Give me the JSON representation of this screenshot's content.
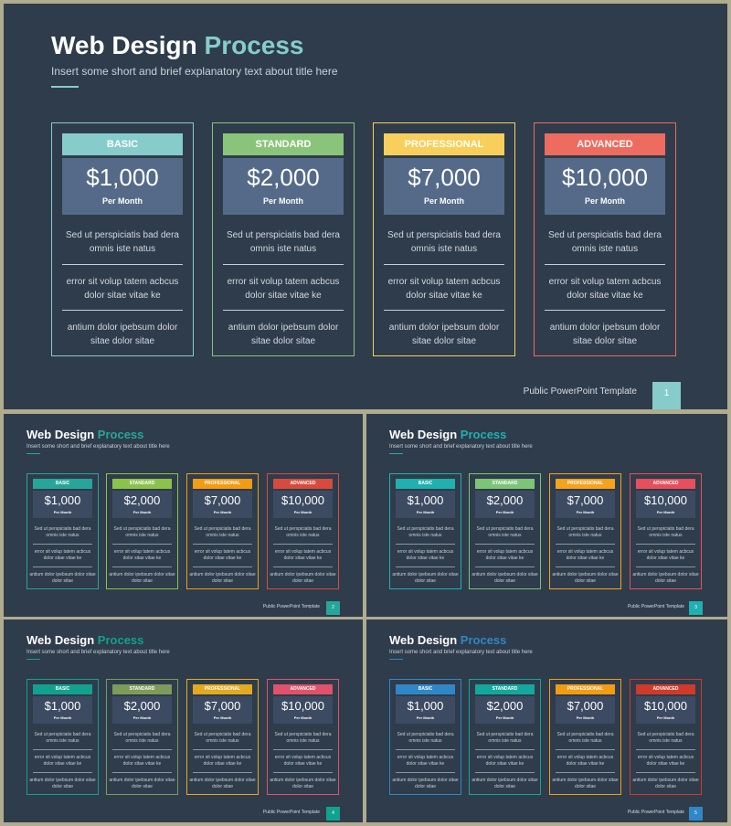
{
  "title_main": "Web Design",
  "title_accent": "Process",
  "subtitle": "Insert some short and brief explanatory text about title here",
  "per_month": "Per Month",
  "footer": "Public PowerPoint  Template",
  "plans": [
    {
      "name": "BASIC",
      "price": "$1,000"
    },
    {
      "name": "STANDARD",
      "price": "$2,000"
    },
    {
      "name": "PROFESSIONAL",
      "price": "$7,000"
    },
    {
      "name": "ADVANCED",
      "price": "$10,000"
    }
  ],
  "features": [
    "Sed ut perspiciatis bad dera omnis iste natus",
    "error sit volup tatem acbcus dolor sitae vitae ke",
    "antium dolor ipebsum dolor sitae dolor sitae"
  ],
  "slides": [
    {
      "page": "1",
      "accent": "#86cccb",
      "colors": [
        "#86cccb",
        "#8ac47a",
        "#f7cf5a",
        "#ee6b5f"
      ]
    },
    {
      "page": "2",
      "accent": "#26a69a",
      "colors": [
        "#26a69a",
        "#8bc34a",
        "#f39c12",
        "#d84b3c"
      ]
    },
    {
      "page": "3",
      "accent": "#1fb0b0",
      "colors": [
        "#1fb0b0",
        "#7cc576",
        "#f7a21b",
        "#e94e5b"
      ]
    },
    {
      "page": "4",
      "accent": "#10a28e",
      "colors": [
        "#10a28e",
        "#7d9b59",
        "#e2aa1f",
        "#e0516a"
      ]
    },
    {
      "page": "5",
      "accent": "#2f87c8",
      "colors": [
        "#2f87c8",
        "#13a89e",
        "#f39c12",
        "#d03a2b"
      ]
    }
  ]
}
